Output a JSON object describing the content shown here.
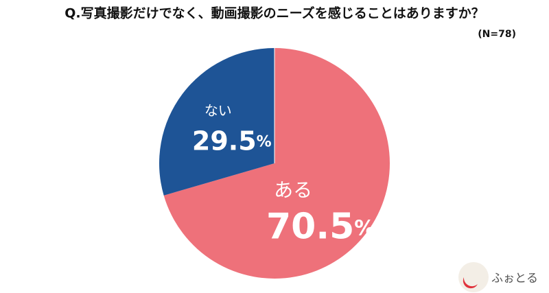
{
  "chart_data": {
    "type": "pie",
    "title": "Q.写真撮影だけでなく、動画撮影のニーズを感じることはありますか？",
    "subtitle": "(N=78)",
    "categories": [
      "ある",
      "ない"
    ],
    "values": [
      70.5,
      29.5
    ],
    "value_labels": [
      "70.5%",
      "29.5%"
    ],
    "colors": [
      "#ee717a",
      "#1e5496"
    ],
    "logo": "ふぉとる"
  }
}
